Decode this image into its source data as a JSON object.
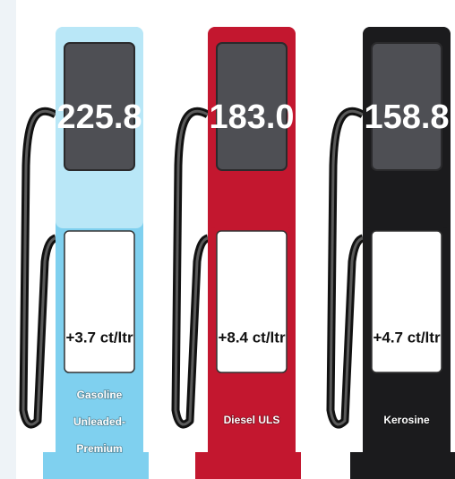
{
  "pumps": [
    {
      "price": "225.8",
      "change": "+3.7 ct/ltr",
      "label_lines": [
        "Gasoline",
        "Unleaded-",
        "Premium"
      ],
      "color": "#7fd0ef",
      "top_color": "#b9e7f7"
    },
    {
      "price": "183.0",
      "change": "+8.4 ct/ltr",
      "label_lines": [
        "Diesel ULS"
      ],
      "color": "#c3172f",
      "top_color": "#c3172f"
    },
    {
      "price": "158.8",
      "change": "+4.7 ct/ltr",
      "label_lines": [
        "Kerosine"
      ],
      "color": "#1b1b1d",
      "top_color": "#1b1b1d"
    }
  ]
}
